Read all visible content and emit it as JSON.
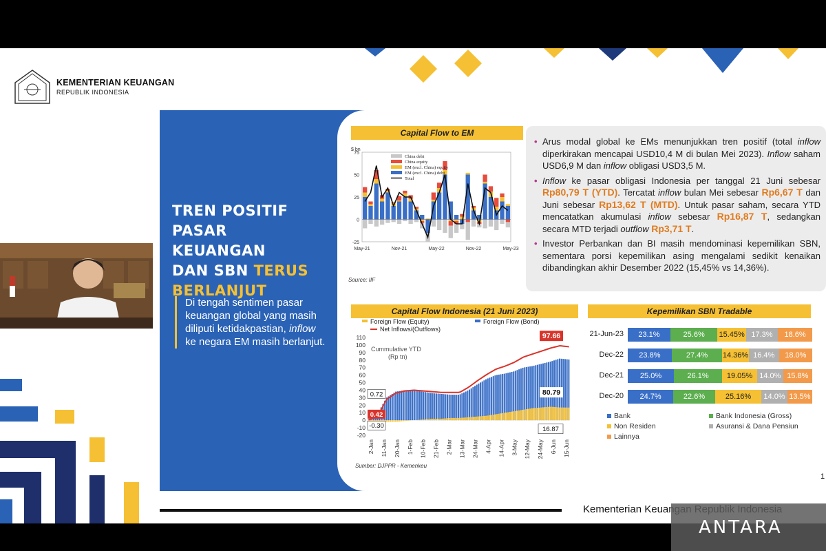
{
  "ministry": {
    "name": "KEMENTERIAN KEUANGAN",
    "sub": "REPUBLIK INDONESIA"
  },
  "title": {
    "line1": "TREN POSITIF",
    "line2": "PASAR KEUANGAN",
    "line3a": "DAN SBN ",
    "line3b": "TERUS",
    "line4": "BERLANJUT"
  },
  "body": {
    "part1": "Di tengah sentimen pasar keuangan global yang masih diliputi ketidakpastian, ",
    "italic": "inflow",
    "part2": " ke negara EM masih berlanjut."
  },
  "chart1": {
    "title": "Capital Flow to EM",
    "source": "Source: IIF",
    "ylabel": "$ bn",
    "legend": [
      "China debt",
      "China equity",
      "EM (excl. China) equity",
      "EM (excl. China) debt",
      "Total"
    ],
    "yticks": [
      "75",
      "50",
      "25",
      "0",
      "-25"
    ],
    "xticks": [
      "May-21",
      "Nov-21",
      "May-22",
      "Nov-22",
      "May-23"
    ],
    "colors": {
      "china_debt": "#c8c8c8",
      "china_equity": "#e74c3c",
      "em_equity": "#f5c033",
      "em_debt": "#3a6fc7",
      "total": "#111111"
    }
  },
  "bullets": [
    {
      "segments": [
        {
          "t": "Arus modal global ke EMs menunjukkan tren positif (total ",
          "s": "n"
        },
        {
          "t": "inflow",
          "s": "i"
        },
        {
          "t": " diperkirakan mencapai USD10,4 M di bulan Mei 2023). ",
          "s": "n"
        },
        {
          "t": "Inflow",
          "s": "i"
        },
        {
          "t": " saham USD6,9 M dan ",
          "s": "n"
        },
        {
          "t": "inflow",
          "s": "i"
        },
        {
          "t": " obligasi USD3,5 M.",
          "s": "n"
        }
      ]
    },
    {
      "segments": [
        {
          "t": "Inflow",
          "s": "i"
        },
        {
          "t": " ke pasar obligasi Indonesia per tanggal 21 Juni sebesar ",
          "s": "n"
        },
        {
          "t": "Rp80,79 T (YTD)",
          "s": "o"
        },
        {
          "t": ". Tercatat ",
          "s": "n"
        },
        {
          "t": "inflow",
          "s": "i"
        },
        {
          "t": " bulan Mei sebesar ",
          "s": "n"
        },
        {
          "t": "Rp6,67 T",
          "s": "o"
        },
        {
          "t": " dan Juni sebesar ",
          "s": "n"
        },
        {
          "t": "Rp13,62 T (MTD)",
          "s": "o"
        },
        {
          "t": ". Untuk pasar saham, secara YTD mencatatkan akumulasi ",
          "s": "n"
        },
        {
          "t": "inflow",
          "s": "i"
        },
        {
          "t": " sebesar ",
          "s": "n"
        },
        {
          "t": "Rp16,87 T",
          "s": "o"
        },
        {
          "t": ", sedangkan secara MTD terjadi ",
          "s": "n"
        },
        {
          "t": "outflow",
          "s": "i"
        },
        {
          "t": " ",
          "s": "n"
        },
        {
          "t": "Rp3,71 T",
          "s": "o"
        },
        {
          "t": ".",
          "s": "n"
        }
      ]
    },
    {
      "segments": [
        {
          "t": "Investor Perbankan dan BI masih mendominasi kepemilikan SBN, sementara porsi kepemilikan asing mengalami sedikit kenaikan dibandingkan akhir Desember 2022 (15,45% vs 14,36%).",
          "s": "n"
        }
      ]
    }
  ],
  "chart2": {
    "title": "Capital Flow Indonesia (21 Juni 2023)",
    "legend_equity": "Foreign Flow (Equity)",
    "legend_bond": "Foreign Flow (Bond)",
    "legend_net": "Net Inflows/(Outflows)",
    "inner_label": "Cummulative YTD",
    "inner_unit": "(Rp tn)",
    "source": "Sumber: DJPPR - Kemenkeu",
    "yticks": [
      "110",
      "100",
      "90",
      "80",
      "70",
      "60",
      "50",
      "40",
      "30",
      "20",
      "10",
      "0",
      "-10",
      "-20"
    ],
    "xticks": [
      "2-Jan",
      "11-Jan",
      "20-Jan",
      "1-Feb",
      "10-Feb",
      "21-Feb",
      "2-Mar",
      "13-Mar",
      "24-Mar",
      "4-Apr",
      "14-Apr",
      "3-May",
      "12-May",
      "24-May",
      "6-Jun",
      "15-Jun"
    ],
    "callouts": {
      "total": "97.66",
      "bond": "80.79",
      "equity": "16.87",
      "start_pos": "0.72",
      "start_net": "0.42",
      "start_neg": "-0.30"
    },
    "colors": {
      "equity": "#f5c033",
      "bond": "#3a6fc7",
      "net": "#d9342b"
    }
  },
  "chart_data": [
    {
      "type": "bar",
      "title": "Capital Flow to EM",
      "ylabel": "$ bn",
      "ylim": [
        -25,
        75
      ],
      "series": [
        {
          "name": "China debt",
          "values": [
            -10,
            -5,
            -8,
            -6,
            -4,
            -3,
            -5,
            -2,
            -5,
            -3,
            -6,
            -10,
            -8,
            -12,
            -15,
            -14,
            -10,
            -6,
            -20,
            -8,
            -4,
            -10,
            -8,
            -12,
            -5,
            -6
          ]
        },
        {
          "name": "China equity",
          "values": [
            6,
            3,
            10,
            4,
            2,
            1,
            5,
            3,
            4,
            2,
            -2,
            0,
            8,
            6,
            10,
            -5,
            -3,
            3,
            -3,
            2,
            -2,
            8,
            6,
            10,
            4,
            -3
          ]
        },
        {
          "name": "EM (excl. China) equity",
          "values": [
            5,
            2,
            5,
            3,
            2,
            3,
            1,
            4,
            3,
            2,
            -2,
            1,
            2,
            5,
            5,
            -2,
            -2,
            3,
            2,
            3,
            -3,
            2,
            6,
            4,
            5,
            2
          ]
        },
        {
          "name": "EM (excl. China) debt",
          "values": [
            25,
            15,
            40,
            20,
            30,
            15,
            20,
            25,
            20,
            10,
            5,
            -15,
            20,
            30,
            50,
            20,
            5,
            -5,
            50,
            10,
            5,
            40,
            25,
            10,
            20,
            15
          ]
        },
        {
          "name": "Total",
          "values": [
            20,
            30,
            60,
            25,
            35,
            15,
            30,
            25,
            25,
            10,
            -5,
            -20,
            15,
            30,
            50,
            0,
            -5,
            -5,
            40,
            10,
            -5,
            35,
            30,
            5,
            15,
            10
          ]
        }
      ]
    },
    {
      "type": "bar",
      "title": "Capital Flow Indonesia (21 Juni 2023)",
      "ylim": [
        -20,
        110
      ],
      "series": [
        {
          "name": "Foreign Flow (Equity)",
          "values": [
            -0.3,
            -3,
            -2,
            -2,
            -1,
            0,
            1,
            2,
            2,
            3,
            3,
            4,
            5,
            6,
            8,
            10,
            12,
            14,
            16,
            17,
            18,
            17,
            16.87
          ]
        },
        {
          "name": "Foreign Flow (Bond)",
          "values": [
            0.72,
            8,
            30,
            38,
            40,
            40,
            38,
            36,
            35,
            34,
            34,
            40,
            48,
            55,
            60,
            62,
            65,
            70,
            72,
            75,
            78,
            82,
            80.79
          ]
        },
        {
          "name": "Net Inflows/(Outflows)",
          "values": [
            0.42,
            5,
            28,
            36,
            39,
            40,
            39,
            38,
            37,
            37,
            37,
            44,
            53,
            61,
            68,
            72,
            77,
            84,
            88,
            92,
            96,
            99,
            97.66
          ]
        }
      ]
    },
    {
      "type": "bar",
      "title": "Kepemilikan SBN Tradable",
      "categories": [
        "21-Jun-23",
        "Dec-22",
        "Dec-21",
        "Dec-20"
      ],
      "series": [
        {
          "name": "Bank",
          "values": [
            23.1,
            23.8,
            25.0,
            24.7
          ]
        },
        {
          "name": "Bank Indonesia (Gross)",
          "values": [
            25.6,
            27.4,
            26.1,
            22.6
          ]
        },
        {
          "name": "Non Residen",
          "values": [
            15.45,
            14.36,
            19.05,
            25.16
          ]
        },
        {
          "name": "Asuransi & Dana Pensiun",
          "values": [
            17.3,
            16.4,
            14.0,
            14.0
          ]
        },
        {
          "name": "Lainnya",
          "values": [
            18.6,
            18.0,
            15.8,
            13.5
          ]
        }
      ]
    }
  ],
  "chart3": {
    "title": "Kepemilikan SBN ",
    "title_italic": "Tradable",
    "rows": [
      {
        "label": "21-Jun-23",
        "vals": [
          "23.1%",
          "25.6%",
          "15.45%",
          "17.3%",
          "18.6%"
        ],
        "pcts": [
          23.1,
          25.6,
          15.45,
          17.3,
          18.6
        ]
      },
      {
        "label": "Dec-22",
        "vals": [
          "23.8%",
          "27.4%",
          "14.36%",
          "16.4%",
          "18.0%"
        ],
        "pcts": [
          23.8,
          27.4,
          14.36,
          16.4,
          18.0
        ]
      },
      {
        "label": "Dec-21",
        "vals": [
          "25.0%",
          "26.1%",
          "19.05%",
          "14.0%",
          "15.8%"
        ],
        "pcts": [
          25.0,
          26.1,
          19.05,
          14.0,
          15.8
        ]
      },
      {
        "label": "Dec-20",
        "vals": [
          "24.7%",
          "22.6%",
          "25.16%",
          "14.0%",
          "13.5%"
        ],
        "pcts": [
          24.7,
          22.6,
          25.16,
          14.0,
          13.5
        ]
      }
    ],
    "legend": [
      "Bank",
      "Bank Indonesia (Gross)",
      "Non Residen",
      "Asuransi & Dana Pensiun",
      "Lainnya"
    ],
    "colors": [
      "#3a6fc7",
      "#5cae4f",
      "#f5c033",
      "#b0b0b0",
      "#f39a4a"
    ],
    "textcolors": [
      "#fff",
      "#fff",
      "#222",
      "#fff",
      "#fff"
    ]
  },
  "footer": {
    "text": "Kementerian Keuangan Republik Indonesia",
    "page": "1"
  },
  "watermark": {
    "text": "ANTARA"
  }
}
